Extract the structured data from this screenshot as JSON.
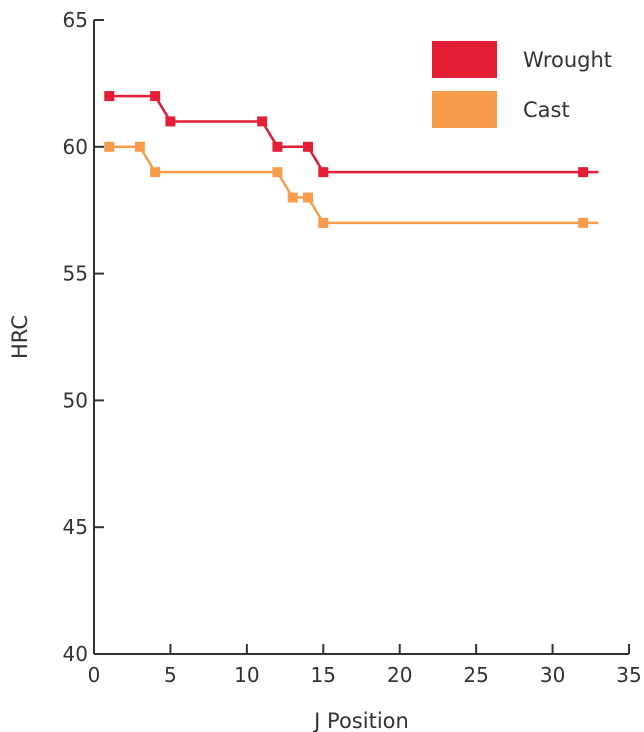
{
  "chart_data": {
    "type": "line",
    "xlabel": "J Position",
    "ylabel": "HRC",
    "xlim": [
      0,
      35
    ],
    "ylim": [
      40,
      65
    ],
    "x_ticks": [
      0,
      5,
      10,
      15,
      20,
      25,
      30,
      35
    ],
    "y_ticks": [
      40,
      45,
      50,
      55,
      60,
      65
    ],
    "x_tick_labels": [
      "0",
      "5",
      "10",
      "15",
      "20",
      "25",
      "30",
      "35"
    ],
    "y_tick_labels": [
      "40",
      "45",
      "50",
      "55",
      "60",
      "65"
    ],
    "line_shape": "step",
    "grid": false,
    "legend_position": "top-right",
    "series": [
      {
        "name": "Wrought",
        "color": "#e31e35",
        "points": [
          [
            1,
            62
          ],
          [
            4,
            62
          ],
          [
            5,
            61
          ],
          [
            11,
            61
          ],
          [
            12,
            60
          ],
          [
            14,
            60
          ],
          [
            15,
            59
          ],
          [
            32,
            59
          ]
        ],
        "line_end_x": 33
      },
      {
        "name": "Cast",
        "color": "#f79c4a",
        "points": [
          [
            1,
            60
          ],
          [
            3,
            60
          ],
          [
            4,
            59
          ],
          [
            12,
            59
          ],
          [
            13,
            58
          ],
          [
            14,
            58
          ],
          [
            15,
            57
          ],
          [
            32,
            57
          ]
        ],
        "line_end_x": 33
      }
    ]
  }
}
